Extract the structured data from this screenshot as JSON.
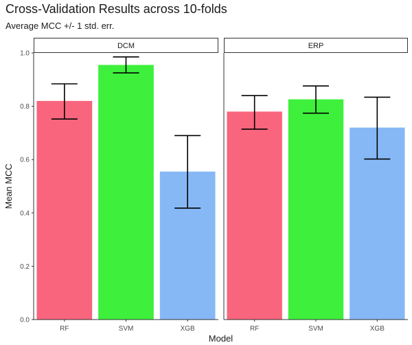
{
  "chart_data": {
    "type": "bar",
    "title": "Cross-Validation Results across 10-folds",
    "subtitle": "Average MCC +/- 1 std. err.",
    "xlabel": "Model",
    "ylabel": "Mean MCC",
    "ylim": [
      0,
      1.0
    ],
    "yticks": [
      "0.0",
      "0.2",
      "0.4",
      "0.6",
      "0.8",
      "1.0"
    ],
    "grid": false,
    "categories": [
      "RF",
      "SVM",
      "XGB"
    ],
    "colors": {
      "RF": "#f8657d",
      "SVM": "#3ef03c",
      "XGB": "#86b8f6"
    },
    "panels": [
      {
        "name": "DCM",
        "values": [
          0.82,
          0.955,
          0.555
        ],
        "error_low": [
          0.752,
          0.925,
          0.418
        ],
        "error_high": [
          0.884,
          0.985,
          0.69
        ]
      },
      {
        "name": "ERP",
        "values": [
          0.78,
          0.826,
          0.72
        ],
        "error_low": [
          0.714,
          0.774,
          0.602
        ],
        "error_high": [
          0.84,
          0.876,
          0.834
        ]
      }
    ]
  }
}
